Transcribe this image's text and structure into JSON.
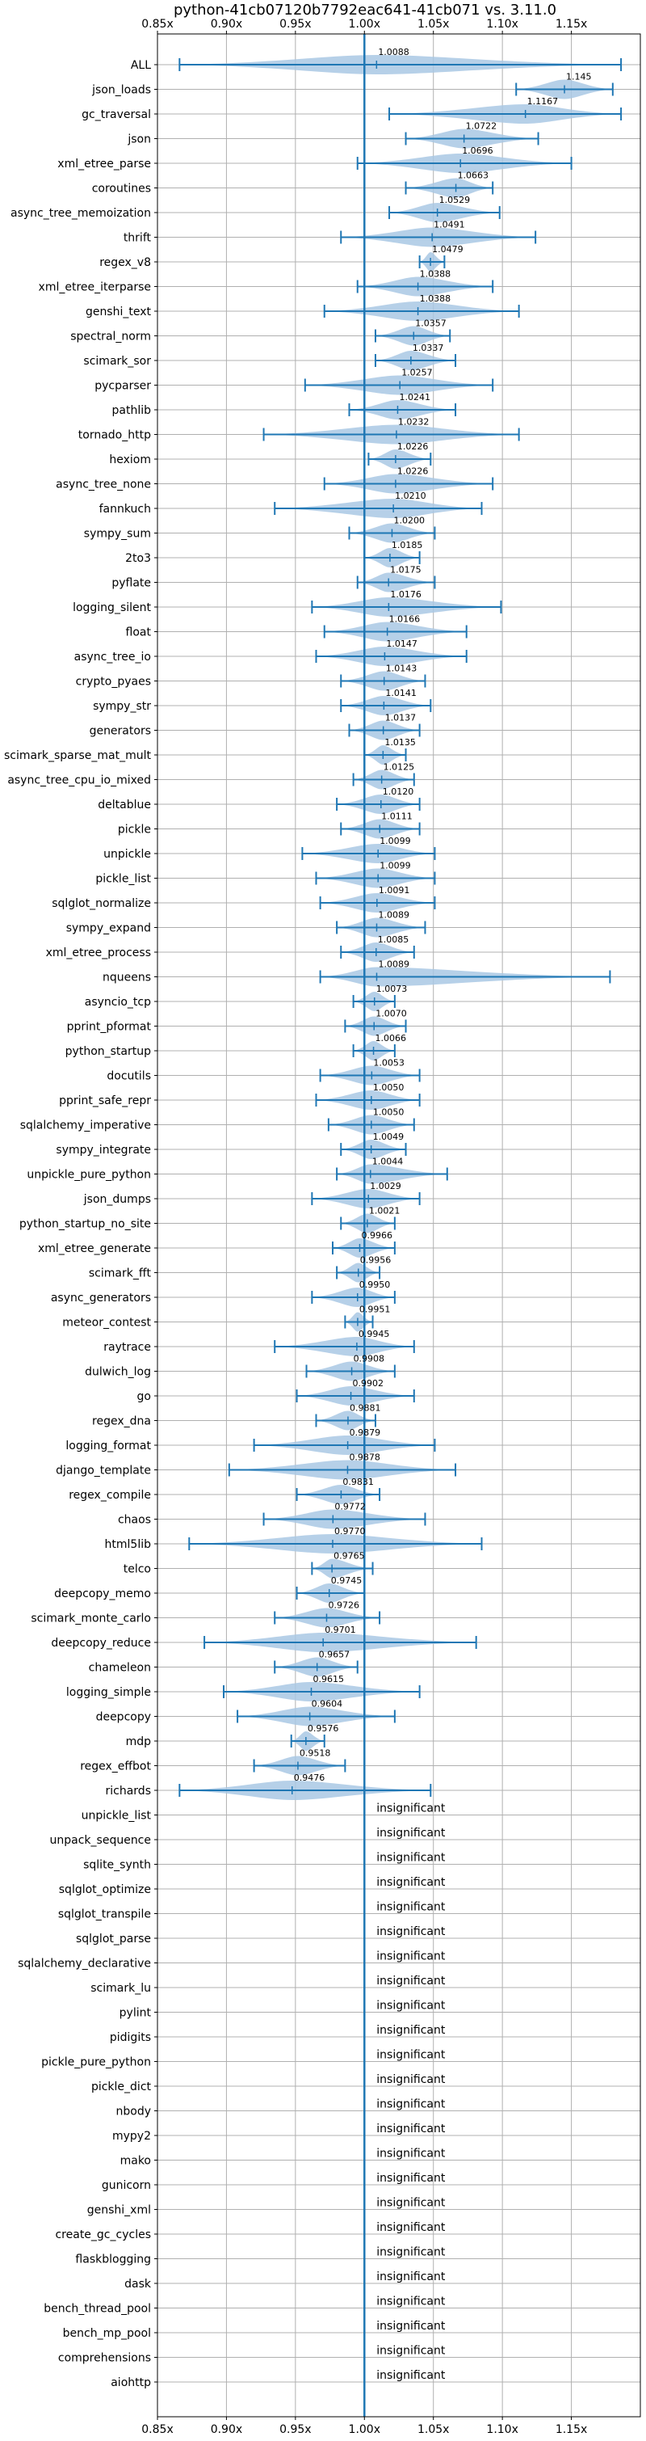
{
  "chart_data": {
    "type": "violin",
    "title": "python-41cb07120b7792eac641-41cb071 vs. 3.11.0",
    "xlim": [
      0.85,
      1.2
    ],
    "xticks": [
      0.85,
      0.9,
      0.95,
      1.0,
      1.05,
      1.1,
      1.15
    ],
    "xtick_labels": [
      "0.85x",
      "0.90x",
      "0.95x",
      "1.00x",
      "1.05x",
      "1.10x",
      "1.15x"
    ],
    "grid": true,
    "reference_line": 1.0,
    "insignificant_label": "insignificant",
    "colors": {
      "violin": "#a9c8e4",
      "line": "#1f77b4",
      "grid": "#b0b0b0"
    },
    "benchmarks": [
      {
        "name": "ALL",
        "value": 1.0088,
        "label": "1.0088",
        "min": 0.866,
        "max": 1.186
      },
      {
        "name": "json_loads",
        "value": 1.145,
        "label": 1.145,
        "min": 1.11,
        "max": 1.18
      },
      {
        "name": "gc_traversal",
        "value": 1.1167,
        "label": "1.1167",
        "min": 1.018,
        "max": 1.186
      },
      {
        "name": "json",
        "value": 1.0722,
        "label": "1.0722",
        "min": 1.03,
        "max": 1.126
      },
      {
        "name": "xml_etree_parse",
        "value": 1.0696,
        "label": "1.0696",
        "min": 0.995,
        "max": 1.15
      },
      {
        "name": "coroutines",
        "value": 1.0663,
        "label": "1.0663",
        "min": 1.03,
        "max": 1.093
      },
      {
        "name": "async_tree_memoization",
        "value": 1.0529,
        "label": "1.0529",
        "min": 1.018,
        "max": 1.098
      },
      {
        "name": "thrift",
        "value": 1.0491,
        "label": "1.0491",
        "min": 0.983,
        "max": 1.124
      },
      {
        "name": "regex_v8",
        "value": 1.0479,
        "label": "1.0479",
        "min": 1.04,
        "max": 1.058
      },
      {
        "name": "xml_etree_iterparse",
        "value": 1.0388,
        "label": "1.0388",
        "min": 0.995,
        "max": 1.093
      },
      {
        "name": "genshi_text",
        "value": 1.0388,
        "label": "1.0388",
        "min": 0.971,
        "max": 1.112
      },
      {
        "name": "spectral_norm",
        "value": 1.0357,
        "label": "1.0357",
        "min": 1.008,
        "max": 1.062
      },
      {
        "name": "scimark_sor",
        "value": 1.0337,
        "label": "1.0337",
        "min": 1.008,
        "max": 1.066
      },
      {
        "name": "pycparser",
        "value": 1.0257,
        "label": "1.0257",
        "min": 0.957,
        "max": 1.093
      },
      {
        "name": "pathlib",
        "value": 1.0241,
        "label": "1.0241",
        "min": 0.989,
        "max": 1.066
      },
      {
        "name": "tornado_http",
        "value": 1.0232,
        "label": "1.0232",
        "min": 0.927,
        "max": 1.112
      },
      {
        "name": "hexiom",
        "value": 1.0226,
        "label": "1.0226",
        "min": 1.003,
        "max": 1.048
      },
      {
        "name": "async_tree_none",
        "value": 1.0226,
        "label": "1.0226",
        "min": 0.971,
        "max": 1.093
      },
      {
        "name": "fannkuch",
        "value": 1.021,
        "label": "1.0210",
        "min": 0.935,
        "max": 1.085
      },
      {
        "name": "sympy_sum",
        "value": 1.02,
        "label": "1.0200",
        "min": 0.989,
        "max": 1.051
      },
      {
        "name": "2to3",
        "value": 1.0185,
        "label": "1.0185",
        "min": 1.0,
        "max": 1.04
      },
      {
        "name": "pyflate",
        "value": 1.0175,
        "label": "1.0175",
        "min": 0.995,
        "max": 1.051
      },
      {
        "name": "logging_silent",
        "value": 1.0176,
        "label": "1.0176",
        "min": 0.962,
        "max": 1.099
      },
      {
        "name": "float",
        "value": 1.0166,
        "label": "1.0166",
        "min": 0.971,
        "max": 1.074
      },
      {
        "name": "async_tree_io",
        "value": 1.0147,
        "label": "1.0147",
        "min": 0.965,
        "max": 1.074
      },
      {
        "name": "crypto_pyaes",
        "value": 1.0143,
        "label": "1.0143",
        "min": 0.983,
        "max": 1.044
      },
      {
        "name": "sympy_str",
        "value": 1.0141,
        "label": "1.0141",
        "min": 0.983,
        "max": 1.048
      },
      {
        "name": "generators",
        "value": 1.0137,
        "label": "1.0137",
        "min": 0.989,
        "max": 1.04
      },
      {
        "name": "scimark_sparse_mat_mult",
        "value": 1.0135,
        "label": "1.0135",
        "min": 1.0,
        "max": 1.03
      },
      {
        "name": "async_tree_cpu_io_mixed",
        "value": 1.0125,
        "label": "1.0125",
        "min": 0.992,
        "max": 1.036
      },
      {
        "name": "deltablue",
        "value": 1.012,
        "label": "1.0120",
        "min": 0.98,
        "max": 1.04
      },
      {
        "name": "pickle",
        "value": 1.0111,
        "label": "1.0111",
        "min": 0.983,
        "max": 1.04
      },
      {
        "name": "unpickle",
        "value": 1.0099,
        "label": "1.0099",
        "min": 0.955,
        "max": 1.051
      },
      {
        "name": "pickle_list",
        "value": 1.0099,
        "label": "1.0099",
        "min": 0.965,
        "max": 1.051
      },
      {
        "name": "sqlglot_normalize",
        "value": 1.0091,
        "label": "1.0091",
        "min": 0.968,
        "max": 1.051
      },
      {
        "name": "sympy_expand",
        "value": 1.0089,
        "label": "1.0089",
        "min": 0.98,
        "max": 1.044
      },
      {
        "name": "xml_etree_process",
        "value": 1.0085,
        "label": "1.0085",
        "min": 0.983,
        "max": 1.036
      },
      {
        "name": "nqueens",
        "value": 1.0089,
        "label": "1.0089",
        "min": 0.968,
        "max": 1.178
      },
      {
        "name": "asyncio_tcp",
        "value": 1.0073,
        "label": "1.0073",
        "min": 0.992,
        "max": 1.022
      },
      {
        "name": "pprint_pformat",
        "value": 1.007,
        "label": "1.0070",
        "min": 0.986,
        "max": 1.03
      },
      {
        "name": "python_startup",
        "value": 1.0066,
        "label": "1.0066",
        "min": 0.992,
        "max": 1.022
      },
      {
        "name": "docutils",
        "value": 1.0053,
        "label": "1.0053",
        "min": 0.968,
        "max": 1.04
      },
      {
        "name": "pprint_safe_repr",
        "value": 1.005,
        "label": "1.0050",
        "min": 0.965,
        "max": 1.04
      },
      {
        "name": "sqlalchemy_imperative",
        "value": 1.005,
        "label": "1.0050",
        "min": 0.974,
        "max": 1.036
      },
      {
        "name": "sympy_integrate",
        "value": 1.0049,
        "label": "1.0049",
        "min": 0.983,
        "max": 1.03
      },
      {
        "name": "unpickle_pure_python",
        "value": 1.0044,
        "label": "1.0044",
        "min": 0.98,
        "max": 1.06
      },
      {
        "name": "json_dumps",
        "value": 1.0029,
        "label": "1.0029",
        "min": 0.962,
        "max": 1.04
      },
      {
        "name": "python_startup_no_site",
        "value": 1.0021,
        "label": "1.0021",
        "min": 0.983,
        "max": 1.022
      },
      {
        "name": "xml_etree_generate",
        "value": 0.9966,
        "label": "0.9966",
        "min": 0.977,
        "max": 1.022
      },
      {
        "name": "scimark_fft",
        "value": 0.9956,
        "label": "0.9956",
        "min": 0.98,
        "max": 1.011
      },
      {
        "name": "async_generators",
        "value": 0.995,
        "label": "0.9950",
        "min": 0.962,
        "max": 1.022
      },
      {
        "name": "meteor_contest",
        "value": 0.9951,
        "label": "0.9951",
        "min": 0.986,
        "max": 1.006
      },
      {
        "name": "raytrace",
        "value": 0.9945,
        "label": "0.9945",
        "min": 0.935,
        "max": 1.036
      },
      {
        "name": "dulwich_log",
        "value": 0.9908,
        "label": "0.9908",
        "min": 0.958,
        "max": 1.022
      },
      {
        "name": "go",
        "value": 0.9902,
        "label": "0.9902",
        "min": 0.951,
        "max": 1.036
      },
      {
        "name": "regex_dna",
        "value": 0.9881,
        "label": "0.9881",
        "min": 0.965,
        "max": 1.008
      },
      {
        "name": "logging_format",
        "value": 0.9879,
        "label": "0.9879",
        "min": 0.92,
        "max": 1.051
      },
      {
        "name": "django_template",
        "value": 0.9878,
        "label": "0.9878",
        "min": 0.902,
        "max": 1.066
      },
      {
        "name": "regex_compile",
        "value": 0.9831,
        "label": "0.9831",
        "min": 0.951,
        "max": 1.011
      },
      {
        "name": "chaos",
        "value": 0.9772,
        "label": "0.9772",
        "min": 0.927,
        "max": 1.044
      },
      {
        "name": "html5lib",
        "value": 0.977,
        "label": "0.9770",
        "min": 0.873,
        "max": 1.085
      },
      {
        "name": "telco",
        "value": 0.9765,
        "label": "0.9765",
        "min": 0.962,
        "max": 1.006
      },
      {
        "name": "deepcopy_memo",
        "value": 0.9745,
        "label": "0.9745",
        "min": 0.951,
        "max": 1.0
      },
      {
        "name": "scimark_monte_carlo",
        "value": 0.9726,
        "label": "0.9726",
        "min": 0.935,
        "max": 1.011
      },
      {
        "name": "deepcopy_reduce",
        "value": 0.9701,
        "label": "0.9701",
        "min": 0.884,
        "max": 1.081
      },
      {
        "name": "chameleon",
        "value": 0.9657,
        "label": "0.9657",
        "min": 0.935,
        "max": 0.995
      },
      {
        "name": "logging_simple",
        "value": 0.9615,
        "label": "0.9615",
        "min": 0.898,
        "max": 1.04
      },
      {
        "name": "deepcopy",
        "value": 0.9604,
        "label": "0.9604",
        "min": 0.908,
        "max": 1.022
      },
      {
        "name": "mdp",
        "value": 0.9576,
        "label": "0.9576",
        "min": 0.947,
        "max": 0.971
      },
      {
        "name": "regex_effbot",
        "value": 0.9518,
        "label": "0.9518",
        "min": 0.92,
        "max": 0.986
      },
      {
        "name": "richards",
        "value": 0.9476,
        "label": "0.9476",
        "min": 0.866,
        "max": 1.048
      },
      {
        "name": "unpickle_list",
        "insignificant": true
      },
      {
        "name": "unpack_sequence",
        "insignificant": true
      },
      {
        "name": "sqlite_synth",
        "insignificant": true
      },
      {
        "name": "sqlglot_optimize",
        "insignificant": true
      },
      {
        "name": "sqlglot_transpile",
        "insignificant": true
      },
      {
        "name": "sqlglot_parse",
        "insignificant": true
      },
      {
        "name": "sqlalchemy_declarative",
        "insignificant": true
      },
      {
        "name": "scimark_lu",
        "insignificant": true
      },
      {
        "name": "pylint",
        "insignificant": true
      },
      {
        "name": "pidigits",
        "insignificant": true
      },
      {
        "name": "pickle_pure_python",
        "insignificant": true
      },
      {
        "name": "pickle_dict",
        "insignificant": true
      },
      {
        "name": "nbody",
        "insignificant": true
      },
      {
        "name": "mypy2",
        "insignificant": true
      },
      {
        "name": "mako",
        "insignificant": true
      },
      {
        "name": "gunicorn",
        "insignificant": true
      },
      {
        "name": "genshi_xml",
        "insignificant": true
      },
      {
        "name": "create_gc_cycles",
        "insignificant": true
      },
      {
        "name": "flaskblogging",
        "insignificant": true
      },
      {
        "name": "dask",
        "insignificant": true
      },
      {
        "name": "bench_thread_pool",
        "insignificant": true
      },
      {
        "name": "bench_mp_pool",
        "insignificant": true
      },
      {
        "name": "comprehensions",
        "insignificant": true
      },
      {
        "name": "aiohttp",
        "insignificant": true
      }
    ]
  }
}
